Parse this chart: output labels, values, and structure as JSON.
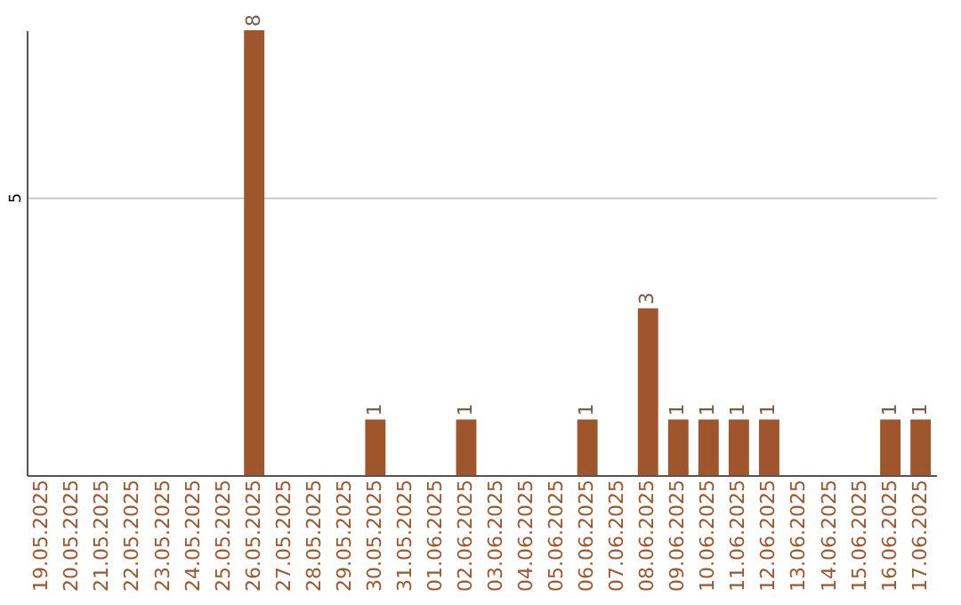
{
  "chart_data": {
    "type": "bar",
    "categories": [
      "19.05.2025",
      "20.05.2025",
      "21.05.2025",
      "22.05.2025",
      "23.05.2025",
      "24.05.2025",
      "25.05.2025",
      "26.05.2025",
      "27.05.2025",
      "28.05.2025",
      "29.05.2025",
      "30.05.2025",
      "31.05.2025",
      "01.06.2025",
      "02.06.2025",
      "03.06.2025",
      "04.06.2025",
      "05.06.2025",
      "06.06.2025",
      "07.06.2025",
      "08.06.2025",
      "09.06.2025",
      "10.06.2025",
      "11.06.2025",
      "12.06.2025",
      "13.06.2025",
      "14.06.2025",
      "15.06.2025",
      "16.06.2025",
      "17.06.2025"
    ],
    "values": [
      0,
      0,
      0,
      0,
      0,
      0,
      0,
      8,
      0,
      0,
      0,
      1,
      0,
      0,
      1,
      0,
      0,
      0,
      1,
      0,
      3,
      1,
      1,
      1,
      1,
      0,
      0,
      0,
      1,
      1
    ],
    "value_labels": [
      null,
      null,
      null,
      null,
      null,
      null,
      null,
      "8",
      null,
      null,
      null,
      "1",
      null,
      null,
      "1",
      null,
      null,
      null,
      "1",
      null,
      "3",
      "1",
      "1",
      "1",
      "1",
      null,
      null,
      null,
      "1",
      "1"
    ],
    "color": "#a0562c",
    "ylim": [
      0,
      8
    ],
    "yticks": [
      5
    ],
    "grid": "y"
  }
}
